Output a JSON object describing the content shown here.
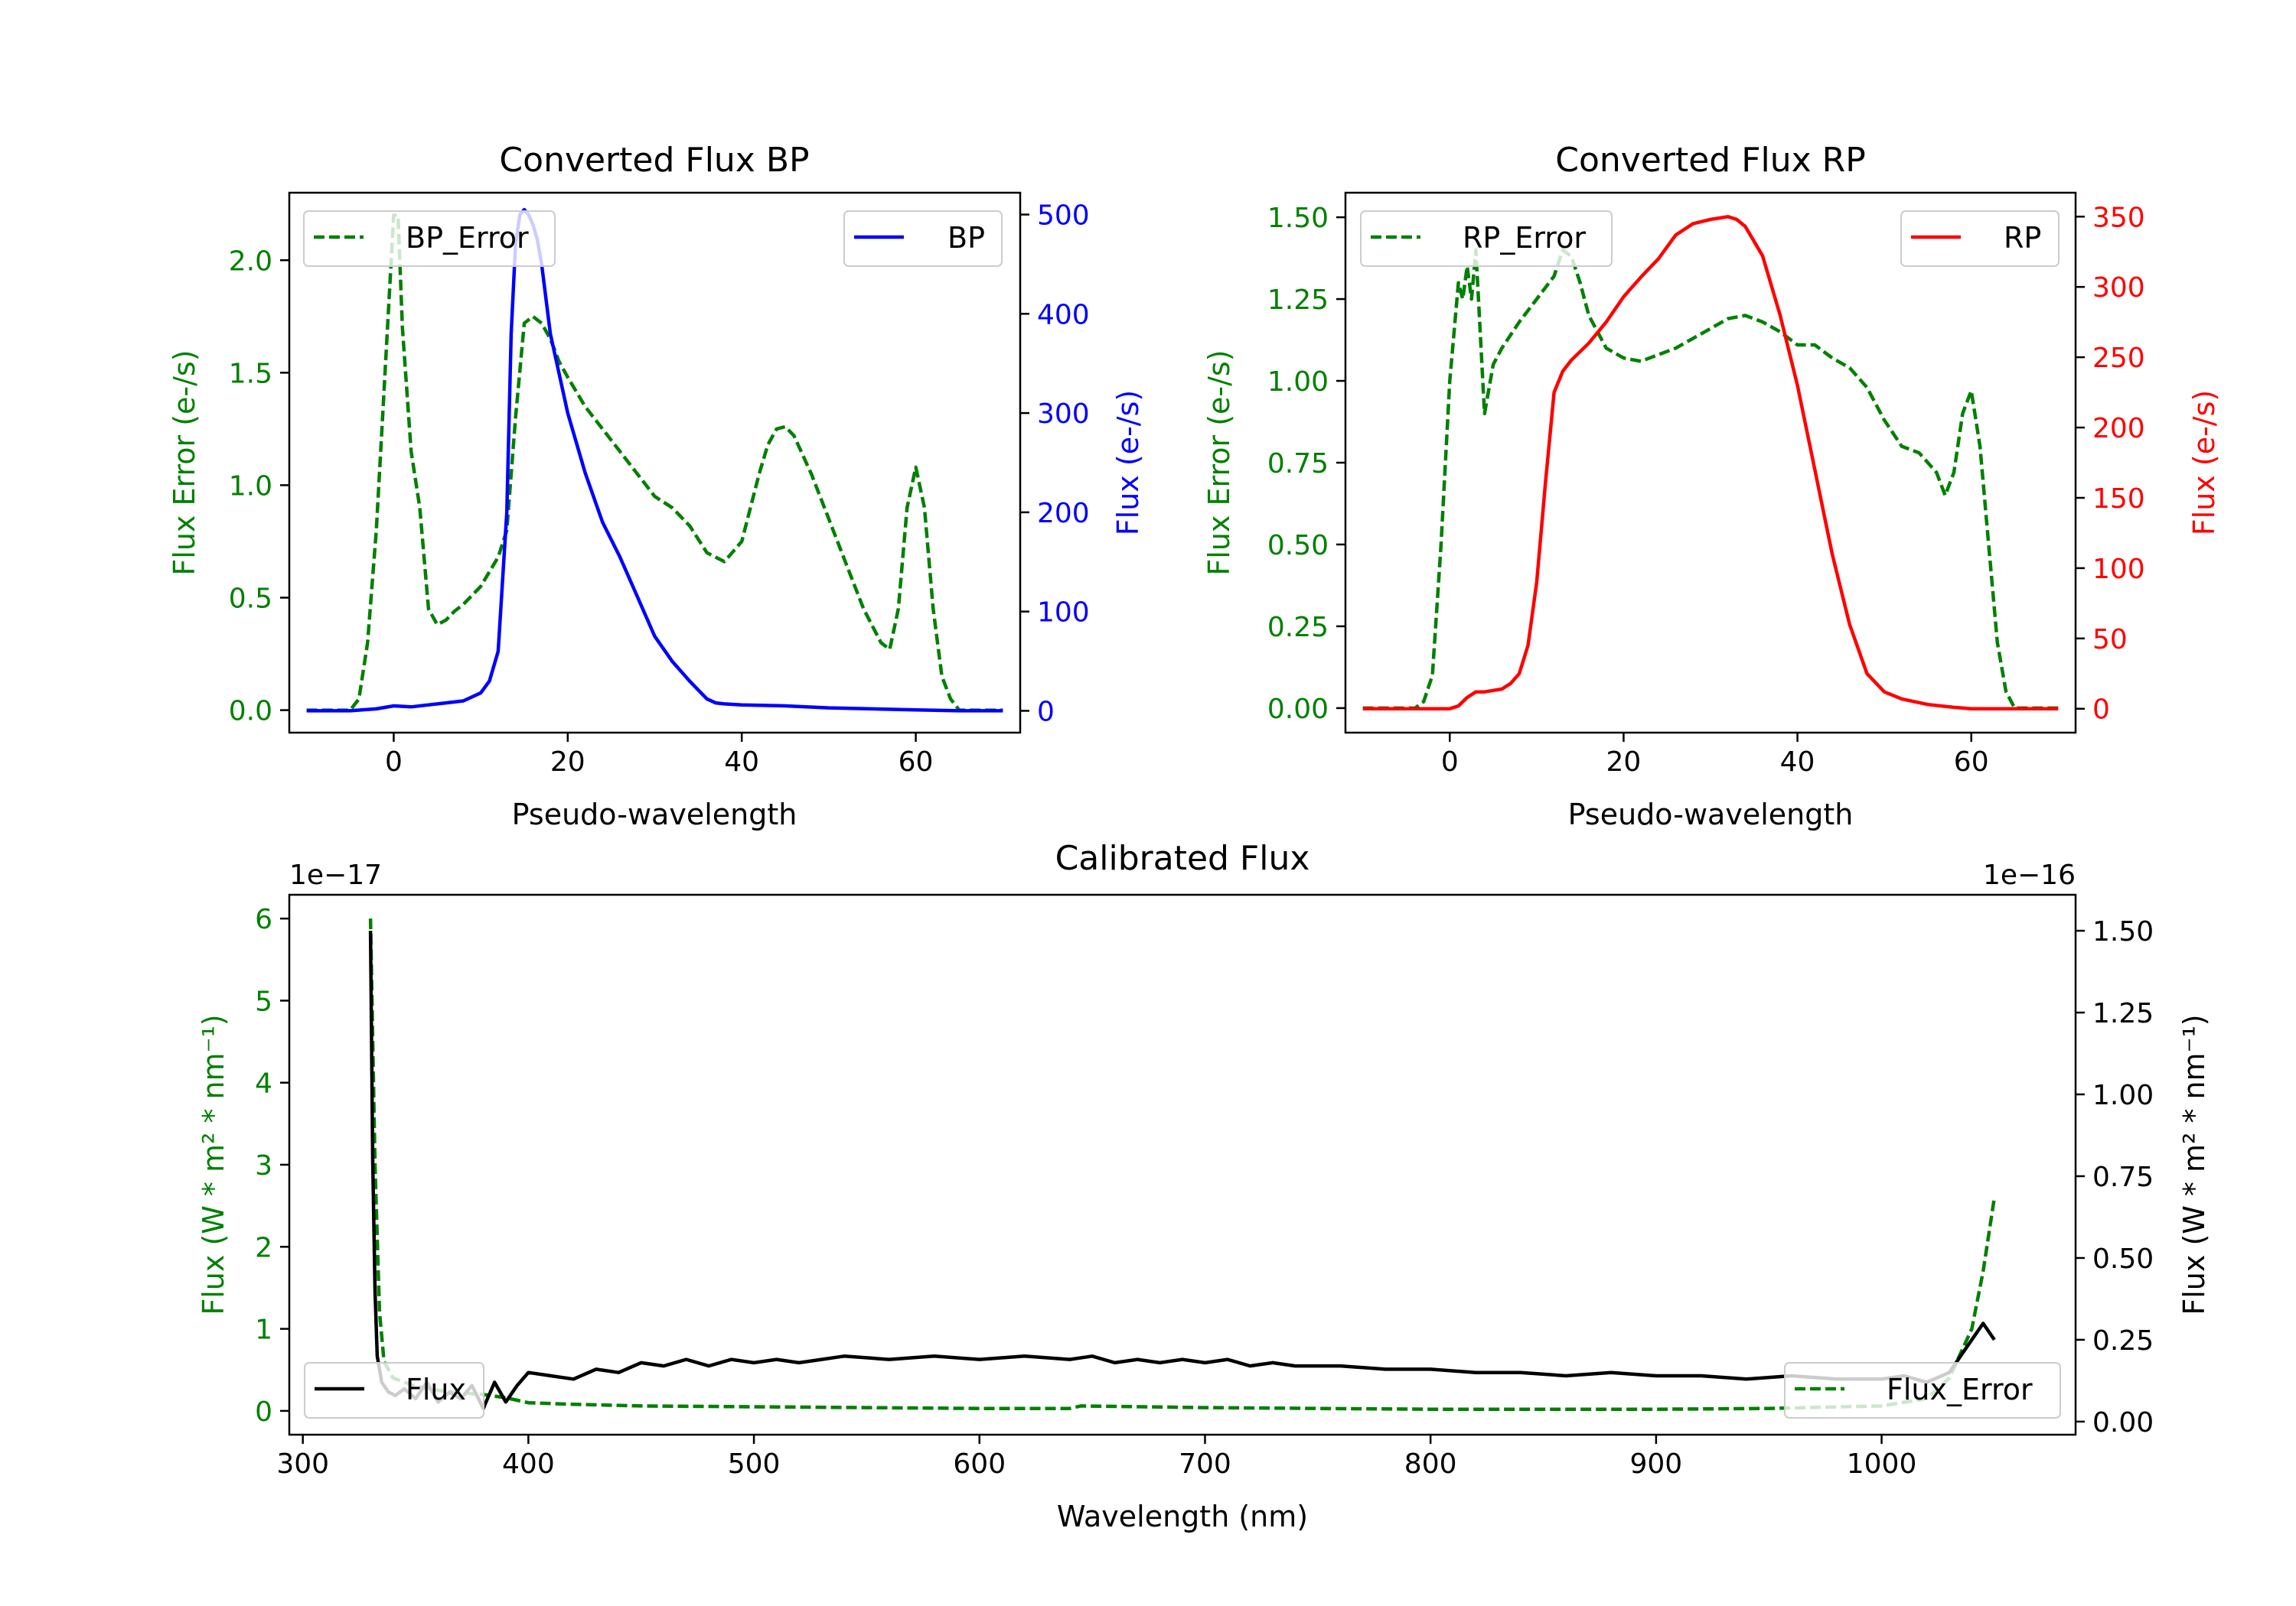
{
  "colors": {
    "error": "#008000",
    "bp": "#0000ff",
    "rp": "#ff0000",
    "flux": "#000000"
  },
  "chart_data": [
    {
      "id": "bp",
      "type": "line",
      "title": "Converted Flux BP",
      "xlabel": "Pseudo-wavelength",
      "ylabel_left": "Flux Error (e-/s)",
      "ylabel_right": "Flux (e-/s)",
      "xlim": [
        -12,
        72
      ],
      "ylim_left": [
        -0.1,
        2.3
      ],
      "ylim_right": [
        -22,
        522
      ],
      "xticks": [
        0,
        20,
        40,
        60
      ],
      "yticks_left": [
        0.0,
        0.5,
        1.0,
        1.5,
        2.0
      ],
      "yticks_right": [
        0,
        100,
        200,
        300,
        400,
        500
      ],
      "legend_left": {
        "label": "BP_Error",
        "position": "upper left"
      },
      "legend_right": {
        "label": "BP",
        "position": "upper right"
      },
      "series": [
        {
          "name": "BP_Error",
          "axis": "left",
          "style": "dashed",
          "color_key": "error",
          "x": [
            -10,
            -5,
            -4,
            -3,
            -2,
            -1,
            0,
            0.5,
            1,
            2,
            3,
            4,
            5,
            6,
            7,
            8,
            10,
            12,
            13,
            14,
            15,
            16,
            17,
            18,
            19,
            20,
            22,
            24,
            26,
            28,
            30,
            32,
            34,
            36,
            38,
            40,
            42,
            43,
            44,
            45,
            46,
            48,
            50,
            52,
            54,
            56,
            57,
            58,
            59,
            60,
            61,
            62,
            63,
            64,
            65,
            70
          ],
          "y": [
            0,
            0,
            0.05,
            0.3,
            0.8,
            1.5,
            2.2,
            2.2,
            1.7,
            1.15,
            0.9,
            0.45,
            0.38,
            0.4,
            0.44,
            0.47,
            0.55,
            0.68,
            0.8,
            1.3,
            1.72,
            1.75,
            1.72,
            1.65,
            1.55,
            1.48,
            1.35,
            1.25,
            1.15,
            1.05,
            0.95,
            0.9,
            0.82,
            0.7,
            0.66,
            0.75,
            1.05,
            1.18,
            1.25,
            1.26,
            1.22,
            1.05,
            0.85,
            0.65,
            0.45,
            0.3,
            0.27,
            0.45,
            0.9,
            1.08,
            0.9,
            0.45,
            0.15,
            0.05,
            0,
            0
          ]
        },
        {
          "name": "BP",
          "axis": "right",
          "style": "solid",
          "color_key": "bp",
          "x": [
            -10,
            -5,
            -2,
            0,
            2,
            4,
            6,
            8,
            10,
            11,
            12,
            13,
            13.5,
            14,
            14.5,
            15,
            15.5,
            16,
            16.5,
            17,
            18,
            20,
            22,
            24,
            26,
            28,
            30,
            32,
            34,
            36,
            37,
            38,
            40,
            45,
            50,
            55,
            60,
            65,
            70
          ],
          "y": [
            0,
            0,
            2,
            5,
            4,
            6,
            8,
            10,
            18,
            30,
            60,
            200,
            380,
            470,
            500,
            505,
            500,
            490,
            475,
            450,
            380,
            300,
            240,
            190,
            155,
            115,
            75,
            50,
            30,
            12,
            8,
            7,
            6,
            5,
            3,
            2,
            1,
            0,
            0
          ]
        }
      ]
    },
    {
      "id": "rp",
      "type": "line",
      "title": "Converted Flux RP",
      "xlabel": "Pseudo-wavelength",
      "ylabel_left": "Flux Error (e-/s)",
      "ylabel_right": "Flux (e-/s)",
      "xlim": [
        -12,
        72
      ],
      "ylim_left": [
        -0.075,
        1.575
      ],
      "ylim_right": [
        -17,
        367
      ],
      "xticks": [
        0,
        20,
        40,
        60
      ],
      "yticks_left": [
        0.0,
        0.25,
        0.5,
        0.75,
        1.0,
        1.25,
        1.5
      ],
      "yticks_right": [
        0,
        50,
        100,
        150,
        200,
        250,
        300,
        350
      ],
      "legend_left": {
        "label": "RP_Error",
        "position": "upper left"
      },
      "legend_right": {
        "label": "RP",
        "position": "upper right"
      },
      "series": [
        {
          "name": "RP_Error",
          "axis": "left",
          "style": "dashed",
          "color_key": "error",
          "x": [
            -10,
            -4,
            -3,
            -2,
            -1,
            0,
            1,
            1.5,
            2,
            2.5,
            3,
            4,
            5,
            6,
            8,
            10,
            12,
            13,
            14,
            15,
            16,
            18,
            20,
            22,
            24,
            26,
            28,
            30,
            32,
            34,
            36,
            38,
            40,
            42,
            44,
            46,
            48,
            50,
            52,
            54,
            56,
            57,
            58,
            59,
            60,
            61,
            62,
            63,
            64,
            65,
            70
          ],
          "y": [
            0,
            0,
            0.02,
            0.1,
            0.5,
            1.0,
            1.3,
            1.25,
            1.35,
            1.25,
            1.4,
            0.9,
            1.05,
            1.1,
            1.18,
            1.25,
            1.32,
            1.4,
            1.38,
            1.3,
            1.2,
            1.1,
            1.07,
            1.06,
            1.08,
            1.1,
            1.13,
            1.16,
            1.19,
            1.2,
            1.18,
            1.15,
            1.11,
            1.11,
            1.07,
            1.04,
            0.98,
            0.88,
            0.8,
            0.78,
            0.72,
            0.65,
            0.72,
            0.9,
            0.97,
            0.8,
            0.5,
            0.2,
            0.05,
            0,
            0
          ]
        },
        {
          "name": "RP",
          "axis": "right",
          "style": "solid",
          "color_key": "rp",
          "x": [
            -10,
            -5,
            0,
            1,
            2,
            3,
            4,
            5,
            6,
            7,
            8,
            9,
            10,
            11,
            12,
            13,
            14,
            16,
            18,
            20,
            22,
            24,
            26,
            28,
            30,
            31,
            32,
            33,
            34,
            36,
            38,
            40,
            42,
            44,
            46,
            48,
            50,
            52,
            55,
            58,
            60,
            62,
            65,
            70
          ],
          "y": [
            0,
            0,
            0,
            2,
            8,
            12,
            12,
            13,
            14,
            18,
            25,
            45,
            90,
            160,
            225,
            240,
            248,
            260,
            275,
            293,
            307,
            320,
            337,
            345,
            348,
            349,
            350,
            348,
            343,
            322,
            280,
            230,
            170,
            110,
            60,
            25,
            12,
            7,
            3,
            1,
            0,
            0,
            0,
            0
          ]
        }
      ]
    },
    {
      "id": "calibrated",
      "type": "line",
      "title": "Calibrated Flux",
      "xlabel": "Wavelength (nm)",
      "ylabel_left": "Flux (W * m² * nm⁻¹)",
      "ylabel_right": "Flux (W * m² * nm⁻¹)",
      "left_offset_label": "1e−17",
      "right_offset_label": "1e−16",
      "xlim": [
        294,
        1086
      ],
      "ylim_left": [
        -0.29,
        6.29
      ],
      "ylim_right": [
        -0.04,
        1.61
      ],
      "xticks": [
        300,
        400,
        500,
        600,
        700,
        800,
        900,
        1000
      ],
      "yticks_left": [
        0,
        1,
        2,
        3,
        4,
        5,
        6
      ],
      "yticks_right": [
        0.0,
        0.25,
        0.5,
        0.75,
        1.0,
        1.25,
        1.5
      ],
      "yticks_right_labels": [
        "0.00",
        "0.25",
        "0.50",
        "0.75",
        "1.00",
        "1.25",
        "1.50"
      ],
      "legend_left": {
        "label": "Flux",
        "position": "lower left"
      },
      "legend_right": {
        "label": "Flux_Error",
        "position": "lower right"
      },
      "series": [
        {
          "name": "Flux_Error",
          "axis": "left",
          "style": "dashed",
          "color_key": "error",
          "x": [
            330,
            332,
            334,
            336,
            340,
            345,
            350,
            360,
            370,
            380,
            390,
            400,
            420,
            450,
            500,
            550,
            600,
            640,
            645,
            700,
            750,
            800,
            850,
            900,
            950,
            1000,
            1020,
            1030,
            1040,
            1045,
            1050
          ],
          "y": [
            6.0,
            3.0,
            1.2,
            0.6,
            0.4,
            0.35,
            0.3,
            0.25,
            0.22,
            0.2,
            0.16,
            0.1,
            0.08,
            0.06,
            0.05,
            0.04,
            0.03,
            0.03,
            0.06,
            0.04,
            0.03,
            0.02,
            0.02,
            0.02,
            0.03,
            0.06,
            0.15,
            0.4,
            1.0,
            1.7,
            2.6
          ]
        },
        {
          "name": "Flux",
          "axis": "right",
          "style": "solid",
          "color_key": "flux",
          "x": [
            330,
            331,
            332,
            333,
            335,
            338,
            341,
            345,
            350,
            355,
            360,
            365,
            370,
            375,
            380,
            385,
            390,
            395,
            400,
            410,
            420,
            430,
            440,
            450,
            460,
            470,
            480,
            490,
            500,
            510,
            520,
            530,
            540,
            560,
            580,
            600,
            620,
            640,
            650,
            660,
            670,
            680,
            690,
            700,
            710,
            720,
            730,
            740,
            760,
            780,
            800,
            820,
            840,
            860,
            880,
            900,
            920,
            940,
            960,
            980,
            1000,
            1010,
            1020,
            1030,
            1040,
            1045,
            1050
          ],
          "y": [
            1.5,
            0.8,
            0.4,
            0.2,
            0.12,
            0.09,
            0.08,
            0.1,
            0.07,
            0.12,
            0.06,
            0.09,
            0.07,
            0.11,
            0.04,
            0.12,
            0.06,
            0.11,
            0.15,
            0.14,
            0.13,
            0.16,
            0.15,
            0.18,
            0.17,
            0.19,
            0.17,
            0.19,
            0.18,
            0.19,
            0.18,
            0.19,
            0.2,
            0.19,
            0.2,
            0.19,
            0.2,
            0.19,
            0.2,
            0.18,
            0.19,
            0.18,
            0.19,
            0.18,
            0.19,
            0.17,
            0.18,
            0.17,
            0.17,
            0.16,
            0.16,
            0.15,
            0.15,
            0.14,
            0.15,
            0.14,
            0.14,
            0.13,
            0.14,
            0.13,
            0.13,
            0.14,
            0.12,
            0.15,
            0.25,
            0.3,
            0.25
          ]
        }
      ]
    }
  ]
}
